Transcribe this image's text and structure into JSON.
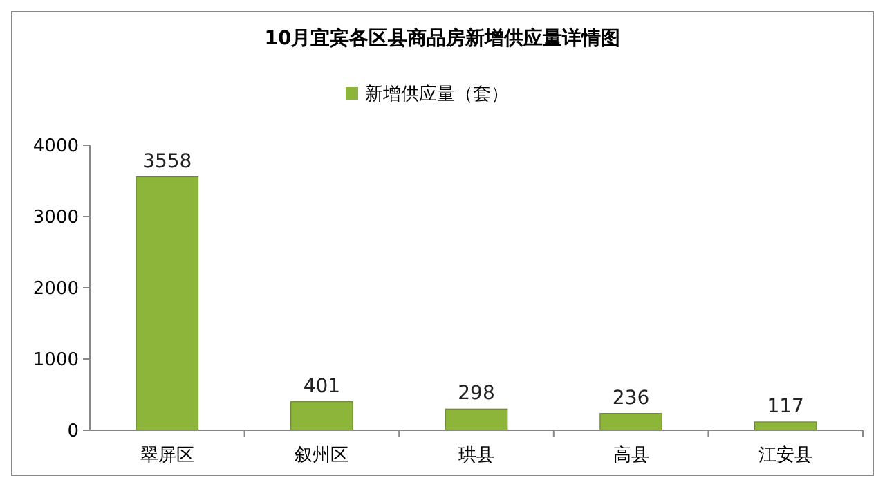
{
  "chart_data": {
    "type": "bar",
    "title": "10月宜宾各区县商品房新增供应量详情图",
    "categories": [
      "翠屏区",
      "叙州区",
      "珙县",
      "高县",
      "江安县"
    ],
    "series": [
      {
        "name": "新增供应量（套）",
        "color": "#8db53a",
        "values": [
          3558,
          401,
          298,
          236,
          117
        ]
      }
    ],
    "ylim": [
      0,
      4000
    ],
    "yticks": [
      0,
      1000,
      2000,
      3000,
      4000
    ],
    "grid": false,
    "legend": "top",
    "data_labels": true
  }
}
